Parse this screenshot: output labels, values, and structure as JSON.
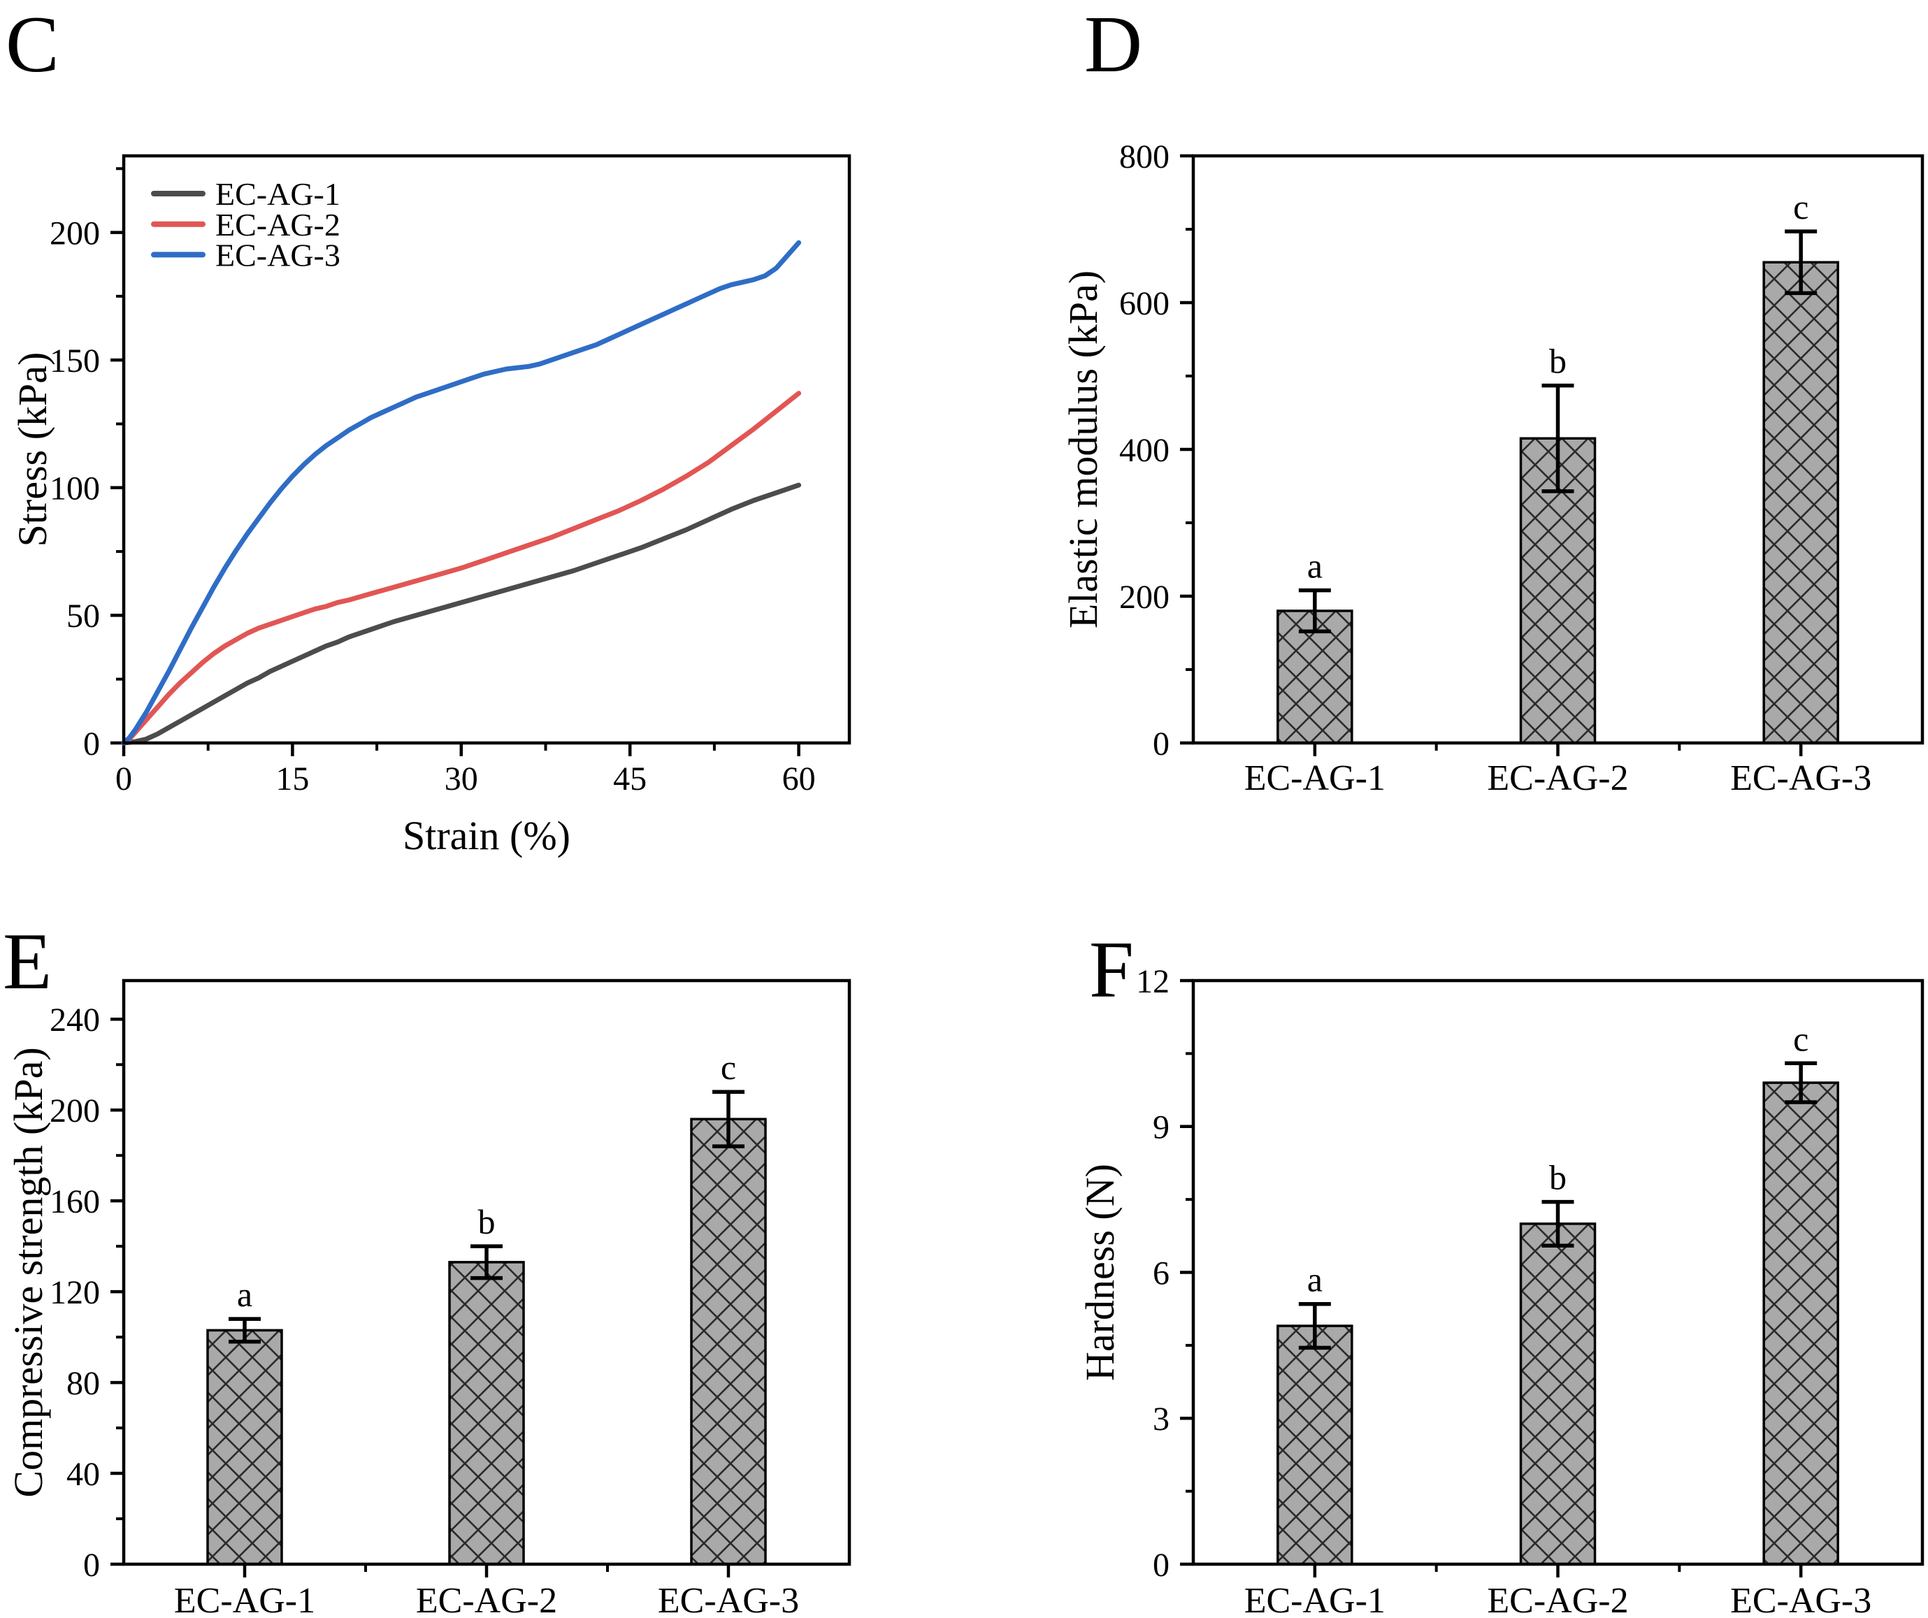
{
  "figure": {
    "background": "#ffffff",
    "panel_labels": [
      "C",
      "D",
      "E",
      "F"
    ]
  },
  "chart_data": [
    {
      "id": "C",
      "type": "line",
      "xlabel": "Strain (%)",
      "ylabel": "Stress (kPa)",
      "xlim": [
        0,
        64.5
      ],
      "ylim": [
        0,
        230
      ],
      "xticks": [
        0,
        15,
        30,
        45,
        60
      ],
      "yticks": [
        0,
        50,
        100,
        150,
        200
      ],
      "x_minor_step": 7.5,
      "y_minor_step": 25,
      "grid": false,
      "legend_position": "top-left",
      "axis_color": "#000000",
      "series": [
        {
          "name": "EC-AG-1",
          "color": "#4c4c4c",
          "points": [
            [
              0,
              0
            ],
            [
              1,
              0.5
            ],
            [
              2,
              1.5
            ],
            [
              3,
              3.5
            ],
            [
              4,
              6
            ],
            [
              5,
              8.5
            ],
            [
              6,
              11
            ],
            [
              7,
              13.5
            ],
            [
              8,
              16
            ],
            [
              9,
              18.5
            ],
            [
              10,
              21
            ],
            [
              11,
              23.5
            ],
            [
              12,
              25.5
            ],
            [
              13,
              28
            ],
            [
              14,
              30
            ],
            [
              15,
              32
            ],
            [
              16,
              34
            ],
            [
              17,
              36
            ],
            [
              18,
              38
            ],
            [
              19,
              39.5
            ],
            [
              20,
              41.5
            ],
            [
              22,
              44.5
            ],
            [
              24,
              47.5
            ],
            [
              26,
              50
            ],
            [
              28,
              52.5
            ],
            [
              30,
              55
            ],
            [
              32,
              57.5
            ],
            [
              34,
              60
            ],
            [
              36,
              62.5
            ],
            [
              38,
              65
            ],
            [
              40,
              67.5
            ],
            [
              42,
              70.5
            ],
            [
              44,
              73.5
            ],
            [
              46,
              76.5
            ],
            [
              48,
              80
            ],
            [
              50,
              83.5
            ],
            [
              52,
              87.5
            ],
            [
              54,
              91.5
            ],
            [
              56,
              95
            ],
            [
              58,
              98
            ],
            [
              60,
              101
            ]
          ]
        },
        {
          "name": "EC-AG-2",
          "color": "#e15654",
          "points": [
            [
              0,
              0
            ],
            [
              0.5,
              1.5
            ],
            [
              1,
              4
            ],
            [
              2,
              9
            ],
            [
              3,
              14
            ],
            [
              4,
              19
            ],
            [
              5,
              23.5
            ],
            [
              6,
              27.5
            ],
            [
              7,
              31.5
            ],
            [
              8,
              35
            ],
            [
              9,
              38
            ],
            [
              10,
              40.5
            ],
            [
              11,
              43
            ],
            [
              12,
              45
            ],
            [
              13,
              46.5
            ],
            [
              14,
              48
            ],
            [
              15,
              49.5
            ],
            [
              16,
              51
            ],
            [
              17,
              52.5
            ],
            [
              18,
              53.5
            ],
            [
              19,
              55
            ],
            [
              20,
              56
            ],
            [
              22,
              58.5
            ],
            [
              24,
              61
            ],
            [
              26,
              63.5
            ],
            [
              28,
              66
            ],
            [
              30,
              68.5
            ],
            [
              32,
              71.5
            ],
            [
              34,
              74.5
            ],
            [
              36,
              77.5
            ],
            [
              38,
              80.5
            ],
            [
              40,
              84
            ],
            [
              42,
              87.5
            ],
            [
              44,
              91
            ],
            [
              46,
              95
            ],
            [
              48,
              99.5
            ],
            [
              50,
              104.5
            ],
            [
              52,
              110
            ],
            [
              54,
              116.5
            ],
            [
              56,
              123
            ],
            [
              58,
              130
            ],
            [
              60,
              137
            ]
          ]
        },
        {
          "name": "EC-AG-3",
          "color": "#2f6dc6",
          "points": [
            [
              0,
              0
            ],
            [
              0.5,
              2
            ],
            [
              1,
              5
            ],
            [
              1.5,
              8.5
            ],
            [
              2,
              12
            ],
            [
              3,
              20
            ],
            [
              4,
              28
            ],
            [
              5,
              36.5
            ],
            [
              6,
              45
            ],
            [
              7,
              53
            ],
            [
              8,
              61
            ],
            [
              9,
              68.5
            ],
            [
              10,
              75.5
            ],
            [
              11,
              82
            ],
            [
              12,
              88
            ],
            [
              13,
              94
            ],
            [
              14,
              99.5
            ],
            [
              15,
              104.5
            ],
            [
              16,
              109
            ],
            [
              17,
              113
            ],
            [
              18,
              116.5
            ],
            [
              19,
              119.5
            ],
            [
              20,
              122.5
            ],
            [
              21,
              125
            ],
            [
              22,
              127.5
            ],
            [
              23,
              129.5
            ],
            [
              24,
              131.5
            ],
            [
              25,
              133.5
            ],
            [
              26,
              135.5
            ],
            [
              27,
              137
            ],
            [
              28,
              138.5
            ],
            [
              29,
              140
            ],
            [
              30,
              141.5
            ],
            [
              31,
              143
            ],
            [
              32,
              144.5
            ],
            [
              33,
              145.5
            ],
            [
              34,
              146.5
            ],
            [
              35,
              147
            ],
            [
              36,
              147.5
            ],
            [
              37,
              148.5
            ],
            [
              38,
              150
            ],
            [
              39,
              151.5
            ],
            [
              40,
              153
            ],
            [
              41,
              154.5
            ],
            [
              42,
              156
            ],
            [
              43,
              158
            ],
            [
              44,
              160
            ],
            [
              45,
              162
            ],
            [
              46,
              164
            ],
            [
              47,
              166
            ],
            [
              48,
              168
            ],
            [
              49,
              170
            ],
            [
              50,
              172
            ],
            [
              51,
              174
            ],
            [
              52,
              176
            ],
            [
              53,
              178
            ],
            [
              54,
              179.5
            ],
            [
              55,
              180.5
            ],
            [
              56,
              181.5
            ],
            [
              57,
              183
            ],
            [
              58,
              186
            ],
            [
              59,
              191
            ],
            [
              60,
              196
            ]
          ]
        }
      ]
    },
    {
      "id": "D",
      "type": "bar",
      "ylabel": "Elastic modulus (kPa)",
      "categories": [
        "EC-AG-1",
        "EC-AG-2",
        "EC-AG-3"
      ],
      "values": [
        180,
        415,
        655
      ],
      "errors": [
        28,
        72,
        42
      ],
      "sig_labels": [
        "a",
        "b",
        "c"
      ],
      "ylim": [
        0,
        800
      ],
      "yticks": [
        0,
        200,
        400,
        600,
        800
      ],
      "y_minor_step": 100,
      "grid": false,
      "bar_fill": "#a9a9a9",
      "hatch_color": "#2b2b2b",
      "bar_outline": "#000000"
    },
    {
      "id": "E",
      "type": "bar",
      "ylabel": "Compressive strength (kPa)",
      "categories": [
        "EC-AG-1",
        "EC-AG-2",
        "EC-AG-3"
      ],
      "values": [
        103,
        133,
        196
      ],
      "errors": [
        5,
        7,
        12
      ],
      "sig_labels": [
        "a",
        "b",
        "c"
      ],
      "ylim": [
        0,
        257
      ],
      "yticks": [
        0,
        40,
        80,
        120,
        160,
        200,
        240
      ],
      "y_minor_step": 20,
      "grid": false,
      "bar_fill": "#a9a9a9",
      "hatch_color": "#2b2b2b",
      "bar_outline": "#000000"
    },
    {
      "id": "F",
      "type": "bar",
      "ylabel": "Hardness (N)",
      "categories": [
        "EC-AG-1",
        "EC-AG-2",
        "EC-AG-3"
      ],
      "values": [
        4.9,
        7.0,
        9.9
      ],
      "errors": [
        0.45,
        0.45,
        0.4
      ],
      "sig_labels": [
        "a",
        "b",
        "c"
      ],
      "ylim": [
        0,
        12
      ],
      "yticks": [
        0,
        3,
        6,
        9,
        12
      ],
      "y_minor_step": 1.5,
      "grid": false,
      "bar_fill": "#a9a9a9",
      "hatch_color": "#2b2b2b",
      "bar_outline": "#000000"
    }
  ]
}
